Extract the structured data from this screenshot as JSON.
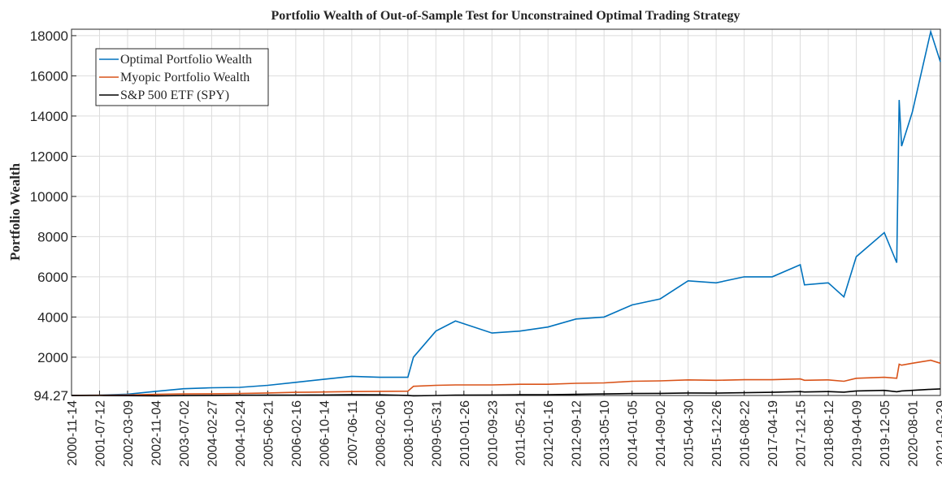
{
  "chart_data": {
    "type": "line",
    "title": "Portfolio Wealth of Out-of-Sample Test for Unconstrained Optimal Trading Strategy",
    "ylabel": "Portfolio Wealth",
    "x": [
      "2000-11-14",
      "2001-07-12",
      "2002-03-09",
      "2002-11-04",
      "2003-07-02",
      "2004-02-27",
      "2004-10-24",
      "2005-06-21",
      "2006-02-16",
      "2006-10-14",
      "2007-06-11",
      "2008-02-06",
      "2008-10-03",
      "2008-11-20",
      "2009-05-31",
      "2009-11-15",
      "2010-09-23",
      "2011-05-21",
      "2012-01-16",
      "2012-09-12",
      "2013-05-10",
      "2014-01-05",
      "2014-09-02",
      "2015-04-30",
      "2015-12-26",
      "2016-08-22",
      "2017-04-19",
      "2017-12-15",
      "2018-01-20",
      "2018-08-12",
      "2018-12-24",
      "2019-04-09",
      "2019-12-05",
      "2020-03-20",
      "2020-04-10",
      "2020-05-01",
      "2020-08-01",
      "2021-01-05",
      "2021-03-29"
    ],
    "series": [
      {
        "name": "Optimal Portfolio Wealth",
        "color": "#0072bd",
        "values": [
          100,
          110,
          160,
          300,
          430,
          480,
          500,
          600,
          750,
          900,
          1050,
          1000,
          1000,
          2000,
          3300,
          3800,
          3200,
          3300,
          3500,
          3900,
          4000,
          4600,
          4900,
          5800,
          5700,
          6000,
          6000,
          6600,
          5600,
          5700,
          5000,
          7000,
          8200,
          6700,
          14800,
          12500,
          14200,
          18200,
          16700
        ]
      },
      {
        "name": "Myopic Portfolio Wealth",
        "color": "#d95319",
        "values": [
          100,
          105,
          120,
          150,
          170,
          180,
          190,
          220,
          250,
          270,
          290,
          300,
          310,
          550,
          600,
          620,
          620,
          650,
          650,
          700,
          720,
          800,
          820,
          870,
          850,
          880,
          880,
          920,
          850,
          870,
          800,
          950,
          1000,
          950,
          1650,
          1600,
          1700,
          1850,
          1700
        ]
      },
      {
        "name": "S&P 500 ETF (SPY)",
        "color": "#000000",
        "values": [
          100,
          95,
          85,
          80,
          90,
          100,
          105,
          110,
          115,
          120,
          130,
          125,
          100,
          80,
          95,
          110,
          120,
          130,
          130,
          150,
          170,
          190,
          200,
          220,
          210,
          230,
          250,
          290,
          270,
          290,
          260,
          320,
          350,
          280,
          300,
          320,
          350,
          400,
          420
        ]
      }
    ],
    "xlim": [
      "2000-11-14",
      "2021-03-29"
    ],
    "xticks": [
      "2000-11-14",
      "2001-07-12",
      "2002-03-09",
      "2002-11-04",
      "2003-07-02",
      "2004-02-27",
      "2004-10-24",
      "2005-06-21",
      "2006-02-16",
      "2006-10-14",
      "2007-06-11",
      "2008-02-06",
      "2008-10-03",
      "2009-05-31",
      "2010-01-26",
      "2010-09-23",
      "2011-05-21",
      "2012-01-16",
      "2012-09-12",
      "2013-05-10",
      "2014-01-05",
      "2014-09-02",
      "2015-04-30",
      "2015-12-26",
      "2016-08-22",
      "2017-04-19",
      "2017-12-15",
      "2018-08-12",
      "2019-04-09",
      "2019-12-05",
      "2020-08-01",
      "2021-03-29"
    ],
    "ylim": [
      94.27,
      18320
    ],
    "yticks": [
      94.27,
      2000,
      4000,
      6000,
      8000,
      10000,
      12000,
      14000,
      16000,
      18000
    ],
    "grid": true,
    "legend": "upper left"
  }
}
